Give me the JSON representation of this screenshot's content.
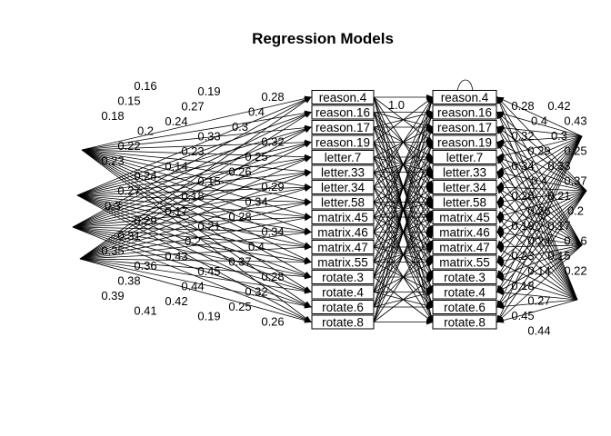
{
  "title": "Regression Models",
  "left_nodes": [
    "reason.4",
    "reason.16",
    "reason.17",
    "reason.19",
    "letter.7",
    "letter.33",
    "letter.34",
    "letter.58",
    "matrix.45",
    "matrix.46",
    "matrix.47",
    "matrix.55",
    "rotate.3",
    "rotate.4",
    "rotate.6",
    "rotate.8"
  ],
  "right_nodes": [
    "reason.4",
    "reason.16",
    "reason.17",
    "reason.19",
    "letter.7",
    "letter.33",
    "letter.34",
    "letter.58",
    "matrix.45",
    "matrix.46",
    "matrix.47",
    "matrix.55",
    "rotate.3",
    "rotate.4",
    "rotate.6",
    "rotate.8"
  ],
  "center_label": "1.0",
  "left_edge_labels": [
    "0.28",
    "0.4",
    "0.3",
    "0.32",
    "0.25",
    "0.26",
    "0.29",
    "0.34",
    "0.28",
    "0.34",
    "0.4",
    "0.37",
    "0.28",
    "0.32",
    "0.25",
    "0.26",
    "0.19",
    "0.27",
    "0.24",
    "0.33",
    "0.23",
    "0.14",
    "0.15",
    "0.18",
    "0.17",
    "0.21",
    "0.2",
    "0.43",
    "0.45",
    "0.44",
    "0.42",
    "0.19",
    "0.16",
    "0.15",
    "0.18",
    "0.2",
    "0.22",
    "0.23",
    "0.24",
    "0.27",
    "0.3",
    "0.29",
    "0.31",
    "0.35",
    "0.36",
    "0.38",
    "0.39",
    "0.41"
  ],
  "right_edge_labels": [
    "0.28",
    "0.4",
    "0.32",
    "0.29",
    "0.34",
    "0.4",
    "0.28",
    "0.26",
    "0.19",
    "0.24",
    "0.23",
    "0.14",
    "0.18",
    "0.27",
    "0.45",
    "0.44",
    "0.42",
    "0.43",
    "0.3",
    "0.25",
    "0.33",
    "0.37",
    "0.21",
    "0.2",
    "0.17",
    "0.16",
    "0.15",
    "0.22"
  ]
}
